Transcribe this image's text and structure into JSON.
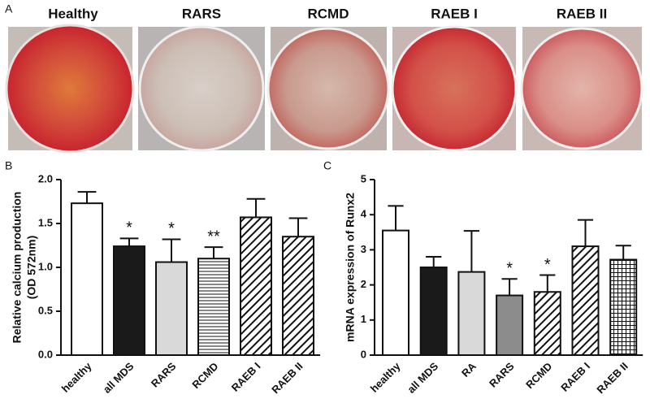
{
  "panel_a": {
    "label": "A",
    "titles": [
      "Healthy",
      "RARS",
      "RCMD",
      "RAEB I",
      "RAEB II"
    ]
  },
  "chart_data": [
    {
      "type": "bar",
      "panel_label": "B",
      "ylabel": [
        "Relative calcium production",
        "(OD 572nm)"
      ],
      "categories": [
        "healthy",
        "all MDS",
        "RARS",
        "RCMD",
        "RAEB I",
        "RAEB II"
      ],
      "values": [
        1.73,
        1.24,
        1.06,
        1.1,
        1.57,
        1.35
      ],
      "errors": [
        0.13,
        0.09,
        0.26,
        0.13,
        0.21,
        0.21
      ],
      "annotations": [
        null,
        "*",
        "*",
        "**",
        null,
        null
      ],
      "colors": [
        "#ffffff",
        "#1a1a1a",
        "#d9d9d9",
        "#ffffff",
        "#ffffff",
        "#ffffff"
      ],
      "patterns": [
        "solid",
        "solid",
        "solid",
        "hlines",
        "diagonal",
        "diagonal"
      ],
      "ylim": [
        0,
        2
      ],
      "yticks": [
        {
          "value": 0,
          "label": "0.0"
        },
        0.5,
        {
          "value": 1,
          "label": "1.0"
        },
        1.5,
        {
          "value": 2,
          "label": "2.0"
        }
      ]
    },
    {
      "type": "bar",
      "panel_label": "C",
      "ylabel": [
        "mRNA expression of Runx2"
      ],
      "categories": [
        "healthy",
        "all MDS",
        "RA",
        "RARS",
        "RCMD",
        "RAEB I",
        "RAEB II"
      ],
      "values": [
        3.55,
        2.5,
        2.37,
        1.7,
        1.8,
        3.1,
        2.72
      ],
      "errors": [
        0.7,
        0.3,
        1.17,
        0.47,
        0.48,
        0.75,
        0.4
      ],
      "annotations": [
        null,
        null,
        null,
        "*",
        "*",
        null,
        null
      ],
      "colors": [
        "#ffffff",
        "#1a1a1a",
        "#d9d9d9",
        "#8c8c8c",
        "#ffffff",
        "#ffffff",
        "#ffffff"
      ],
      "patterns": [
        "solid",
        "solid",
        "solid",
        "solid",
        "diagonal",
        "diagonal",
        "grid"
      ],
      "ylim": [
        0,
        5
      ],
      "yticks": [
        0,
        1,
        2,
        3,
        4,
        5
      ]
    }
  ]
}
